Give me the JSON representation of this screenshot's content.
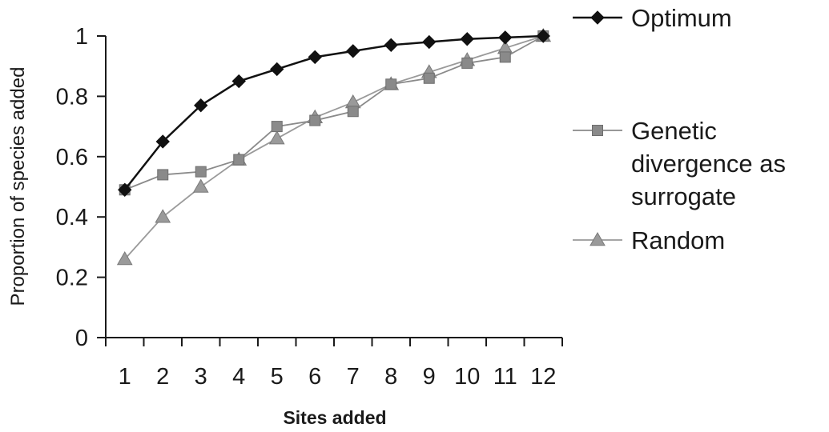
{
  "chart_data": {
    "type": "line",
    "title": "",
    "xlabel": "Sites added",
    "ylabel": "Proportion of species added",
    "categories": [
      "1",
      "2",
      "3",
      "4",
      "5",
      "6",
      "7",
      "8",
      "9",
      "10",
      "11",
      "12"
    ],
    "ylim": [
      0,
      1
    ],
    "yticks": [
      "0",
      "0.2",
      "0.4",
      "0.6",
      "0.8",
      "1"
    ],
    "grid": false,
    "legend_position": "right",
    "series": [
      {
        "name": "Optimum",
        "marker": "diamond",
        "color": "#111111",
        "values": [
          0.49,
          0.65,
          0.77,
          0.85,
          0.89,
          0.93,
          0.95,
          0.97,
          0.98,
          0.99,
          0.995,
          1.0
        ]
      },
      {
        "name_lines": [
          "Genetic",
          "divergence as",
          "surrogate"
        ],
        "marker": "square",
        "color": "#8a8a8a",
        "values": [
          0.49,
          0.54,
          0.55,
          0.59,
          0.7,
          0.72,
          0.75,
          0.84,
          0.86,
          0.91,
          0.93,
          1.0
        ]
      },
      {
        "name": "Random",
        "marker": "triangle",
        "color": "#9a9a9a",
        "values": [
          0.26,
          0.4,
          0.5,
          0.59,
          0.66,
          0.73,
          0.78,
          0.84,
          0.88,
          0.92,
          0.96,
          1.0
        ]
      }
    ]
  }
}
